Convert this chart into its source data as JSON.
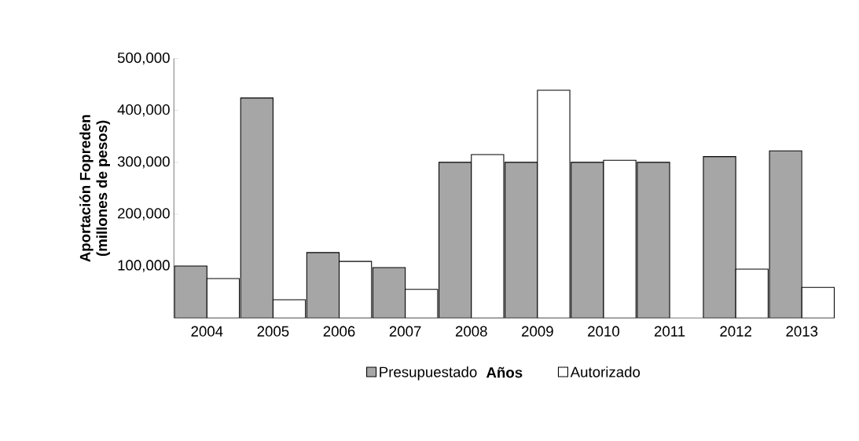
{
  "chart_data": {
    "type": "bar",
    "xlabel": "Años",
    "ylabel": "Aportación Fopreden\n(millones de pesos)",
    "categories": [
      "2004",
      "2005",
      "2006",
      "2007",
      "2008",
      "2009",
      "2010",
      "2011",
      "2012",
      "2013"
    ],
    "series": [
      {
        "name": "Presupuestado",
        "color": "#a6a6a6",
        "values": [
          100000,
          424000,
          126000,
          97000,
          300000,
          300000,
          300000,
          300000,
          311000,
          322000
        ]
      },
      {
        "name": "Autorizado",
        "color": "#ffffff",
        "values": [
          76000,
          35000,
          109000,
          55000,
          315000,
          439000,
          304000,
          null,
          94000,
          59000
        ]
      }
    ],
    "ylim": [
      0,
      500000
    ],
    "yticks": [
      {
        "value": 100000,
        "label": "100,000"
      },
      {
        "value": 200000,
        "label": "200,000"
      },
      {
        "value": 300000,
        "label": "300,000"
      },
      {
        "value": 400000,
        "label": "400,000"
      },
      {
        "value": 500000,
        "label": "500,000"
      }
    ],
    "legend": "bottom",
    "grid": false
  }
}
